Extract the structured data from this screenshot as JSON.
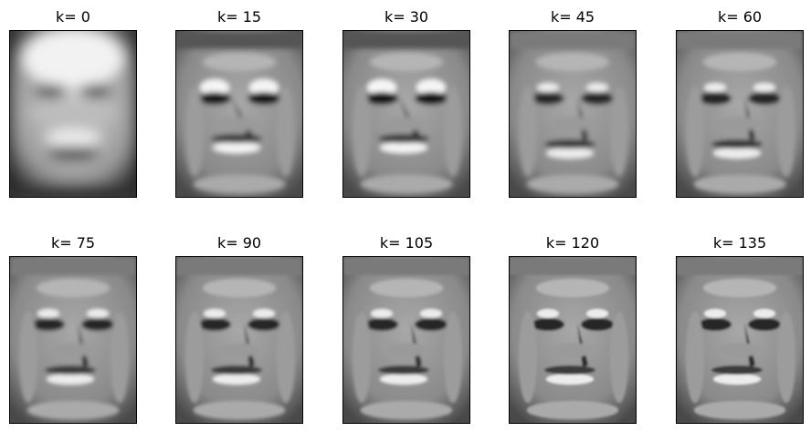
{
  "panels": [
    {
      "title": "k= 0",
      "stage": 0
    },
    {
      "title": "k= 15",
      "stage": 1
    },
    {
      "title": "k= 30",
      "stage": 2
    },
    {
      "title": "k= 45",
      "stage": 3
    },
    {
      "title": "k= 60",
      "stage": 4
    },
    {
      "title": "k= 75",
      "stage": 5
    },
    {
      "title": "k= 90",
      "stage": 6
    },
    {
      "title": "k= 105",
      "stage": 7
    },
    {
      "title": "k= 120",
      "stage": 8
    },
    {
      "title": "k= 135",
      "stage": 9
    }
  ]
}
